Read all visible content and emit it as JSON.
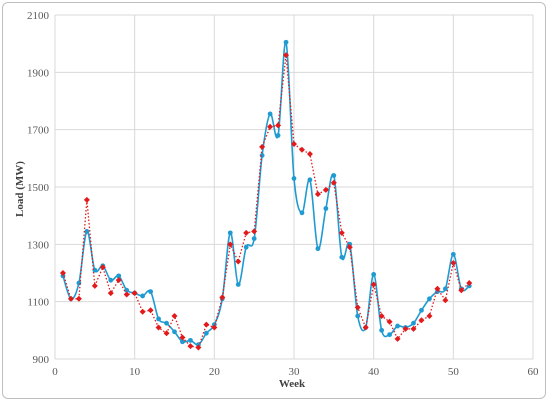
{
  "chart_data": {
    "type": "line",
    "xlabel": "Week",
    "ylabel": "Load (MW)",
    "xlim": [
      0,
      60
    ],
    "ylim": [
      900,
      2100
    ],
    "x_ticks": [
      0,
      10,
      20,
      30,
      40,
      50,
      60
    ],
    "y_ticks": [
      900,
      1100,
      1300,
      1500,
      1700,
      1900,
      2100
    ],
    "grid": true,
    "legend": "none",
    "x": [
      1,
      2,
      3,
      4,
      5,
      6,
      7,
      8,
      9,
      10,
      11,
      12,
      13,
      14,
      15,
      16,
      17,
      18,
      19,
      20,
      21,
      22,
      23,
      24,
      25,
      26,
      27,
      28,
      29,
      30,
      31,
      32,
      33,
      34,
      35,
      36,
      37,
      38,
      39,
      40,
      41,
      42,
      43,
      44,
      45,
      46,
      47,
      48,
      49,
      50,
      51,
      52
    ],
    "series": [
      {
        "color": "#1f9bd1",
        "style": "solid",
        "marker": "circle",
        "values": [
          1190,
          1110,
          1165,
          1345,
          1210,
          1225,
          1175,
          1190,
          1140,
          1130,
          1120,
          1135,
          1040,
          1025,
          995,
          960,
          965,
          950,
          990,
          1020,
          1110,
          1340,
          1160,
          1290,
          1320,
          1610,
          1755,
          1680,
          2005,
          1530,
          1410,
          1525,
          1285,
          1425,
          1540,
          1255,
          1300,
          1050,
          1010,
          1195,
          1000,
          985,
          1015,
          1010,
          1025,
          1070,
          1110,
          1135,
          1145,
          1265,
          1145,
          1155
        ]
      },
      {
        "color": "#e31a1c",
        "style": "dotted",
        "marker": "diamond",
        "values": [
          1200,
          1110,
          1110,
          1455,
          1155,
          1220,
          1130,
          1175,
          1125,
          1130,
          1065,
          1070,
          1010,
          990,
          1050,
          975,
          945,
          940,
          1020,
          1010,
          1115,
          1300,
          1240,
          1340,
          1345,
          1640,
          1710,
          1715,
          1960,
          1650,
          1630,
          1615,
          1475,
          1490,
          1515,
          1340,
          1290,
          1080,
          1010,
          1160,
          1050,
          1030,
          970,
          1005,
          1005,
          1035,
          1050,
          1145,
          1105,
          1235,
          1140,
          1165
        ]
      }
    ]
  }
}
